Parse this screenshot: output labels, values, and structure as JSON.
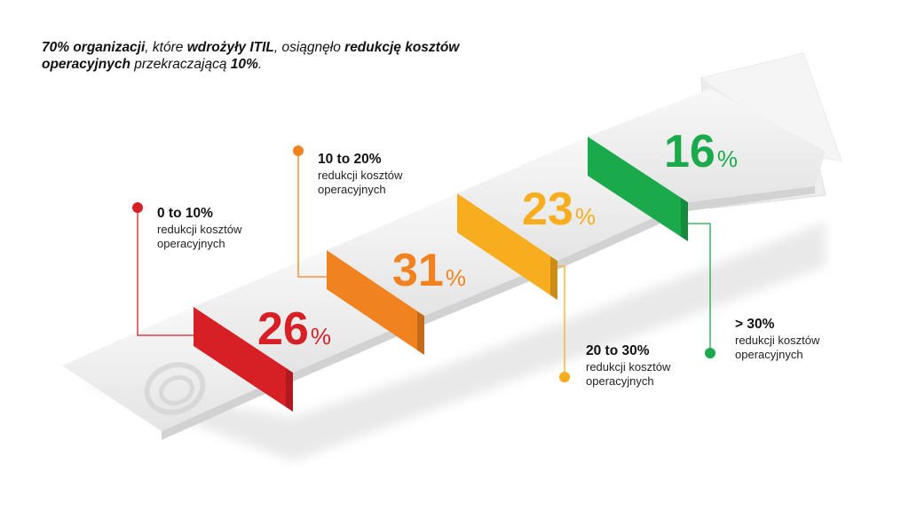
{
  "headline": {
    "part1_bold": "70% organizacji",
    "part2": ", które ",
    "part3_bold": "wdrożyły ITIL",
    "part4": ", osiągnęło ",
    "part5_bold": "redukcję kosztów operacyjnych",
    "part6": " przekraczającą ",
    "part7_bold": "10%",
    "part8": "."
  },
  "chart_data": {
    "type": "bar",
    "title": "70% organizacji, które wdrożyły ITIL, osiągnęło redukcję kosztów operacyjnych przekraczającą 10%.",
    "categories": [
      "0 to 10%",
      "10 to 20%",
      "20 to 30%",
      "> 30%"
    ],
    "values": [
      26,
      31,
      23,
      16
    ],
    "unit": "%",
    "category_sublabel": "redukcji kosztów operacyjnych",
    "colors": [
      "#d71f26",
      "#f0831f",
      "#f7ad1e",
      "#1aaa4b"
    ]
  },
  "callouts": [
    {
      "range": "0 to 10%",
      "line1": "redukcji kosztów",
      "line2": "operacyjnych"
    },
    {
      "range": "10 to 20%",
      "line1": "redukcji kosztów",
      "line2": "operacyjnych"
    },
    {
      "range": "20 to 30%",
      "line1": "redukcji kosztów",
      "line2": "operacyjnych"
    },
    {
      "range": "> 30%",
      "line1": "redukcji kosztów",
      "line2": "operacyjnych"
    }
  ],
  "steps": [
    {
      "value": "26",
      "unit": "%"
    },
    {
      "value": "31",
      "unit": "%"
    },
    {
      "value": "23",
      "unit": "%"
    },
    {
      "value": "16",
      "unit": "%"
    }
  ]
}
